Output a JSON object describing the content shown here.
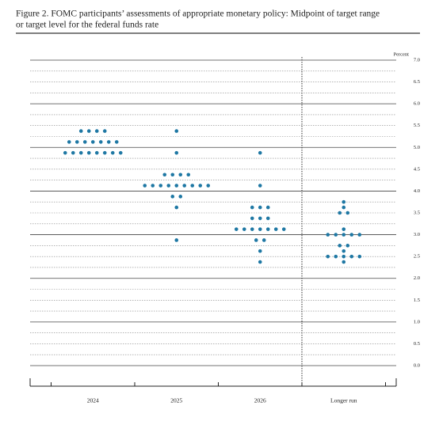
{
  "chart_data": {
    "type": "dot",
    "title": "Figure 2.  FOMC participants’ assessments of appropriate monetary policy:  Midpoint of target range",
    "subtitle": "or target level for the federal funds rate",
    "y_label": "Percent",
    "categories": [
      "2024",
      "2025",
      "2026",
      "Longer run"
    ],
    "color": "#1f78a4",
    "dots": [
      [
        [
          5.375,
          4
        ],
        [
          5.125,
          7
        ],
        [
          4.875,
          8
        ]
      ],
      [
        [
          5.375,
          1
        ],
        [
          4.875,
          1
        ],
        [
          4.375,
          4
        ],
        [
          4.125,
          9
        ],
        [
          3.875,
          2
        ],
        [
          3.625,
          1
        ],
        [
          2.875,
          1
        ]
      ],
      [
        [
          4.875,
          1
        ],
        [
          4.125,
          1
        ],
        [
          3.625,
          3
        ],
        [
          3.375,
          3
        ],
        [
          3.125,
          7
        ],
        [
          2.875,
          2
        ],
        [
          2.625,
          1
        ],
        [
          2.375,
          1
        ]
      ],
      [
        [
          3.75,
          1
        ],
        [
          3.625,
          1
        ],
        [
          3.5,
          2
        ],
        [
          3.125,
          1
        ],
        [
          3.0,
          5
        ],
        [
          2.75,
          2
        ],
        [
          2.625,
          1
        ],
        [
          2.5,
          5
        ],
        [
          2.375,
          1
        ]
      ]
    ],
    "ylim": [
      0,
      7
    ],
    "yticks": [
      {
        "value": 0,
        "label": "0.0"
      },
      0.5,
      {
        "value": 1,
        "label": "1.0"
      },
      1.5,
      {
        "value": 2,
        "label": "2.0"
      },
      2.5,
      {
        "value": 3,
        "label": "3.0"
      },
      3.5,
      {
        "value": 4,
        "label": "4.0"
      },
      4.5,
      {
        "value": 5,
        "label": "5.0"
      },
      5.5,
      {
        "value": 6,
        "label": "6.0"
      },
      6.5,
      {
        "value": 7,
        "label": "7.0"
      }
    ],
    "minor_yticks": [
      0.25,
      0.75,
      1.25,
      1.75,
      2.25,
      2.75,
      3.25,
      3.75,
      4.25,
      4.75,
      5.25,
      5.75,
      6.25,
      6.75
    ],
    "grid": true
  }
}
